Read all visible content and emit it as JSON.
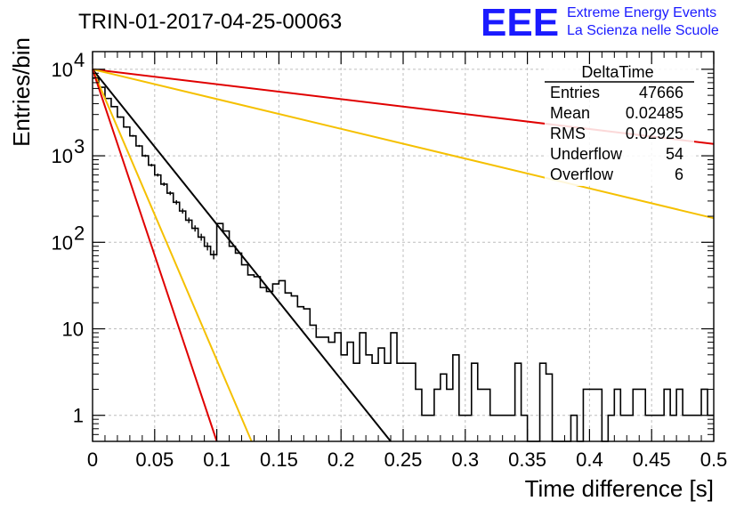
{
  "title": "TRIN-01-2017-04-25-00063",
  "logo": {
    "mark": "EEE",
    "line1": "Extreme Energy Events",
    "line2": "La Scienza nelle Scuole",
    "color": "#1a1aff"
  },
  "stats_box": {
    "name": "DeltaTime",
    "rows": [
      {
        "label": "Entries",
        "value": "47666"
      },
      {
        "label": "Mean",
        "value": "0.02485"
      },
      {
        "label": "RMS",
        "value": "0.02925"
      },
      {
        "label": "Underflow",
        "value": "54"
      },
      {
        "label": "Overflow",
        "value": "6"
      }
    ]
  },
  "chart_data": {
    "type": "line",
    "xlabel": "Time difference [s]",
    "ylabel": "Entries/bin",
    "xlim": [
      0,
      0.5
    ],
    "ylim": [
      0.5,
      16000
    ],
    "yscale": "log",
    "grid": true,
    "x_ticks": [
      "0",
      "0.05",
      "0.1",
      "0.15",
      "0.2",
      "0.25",
      "0.3",
      "0.35",
      "0.4",
      "0.45",
      "0.5"
    ],
    "y_ticks": [
      {
        "value": 1,
        "label": "1"
      },
      {
        "value": 10,
        "label": "10"
      },
      {
        "value": 100,
        "label": "10",
        "exp": "2"
      },
      {
        "value": 1000,
        "label": "10",
        "exp": "3"
      },
      {
        "value": 10000,
        "label": "10",
        "exp": "4"
      }
    ],
    "histogram": {
      "bin_width": 0.005,
      "counts": [
        7900,
        6200,
        4600,
        3700,
        2800,
        2150,
        1700,
        1300,
        1000,
        780,
        600,
        470,
        370,
        290,
        230,
        180,
        145,
        115,
        90,
        72,
        165,
        135,
        90,
        75,
        55,
        42,
        40,
        30,
        27,
        33,
        36,
        26,
        24,
        18,
        17,
        11,
        8,
        8,
        7,
        9,
        5,
        7,
        4,
        9,
        5,
        4,
        6,
        4,
        9,
        4,
        4,
        4,
        2,
        1,
        1,
        2,
        3,
        2,
        5,
        1,
        1,
        4,
        2,
        2,
        1,
        1,
        1,
        1,
        4,
        1,
        0.45,
        0.45,
        4,
        3,
        0.45,
        0.45,
        0.45,
        1,
        0.45,
        2,
        2,
        2,
        0.45,
        1,
        2,
        1,
        1,
        2,
        2,
        1,
        1,
        1,
        2,
        1,
        2,
        1,
        1,
        1,
        2,
        1
      ]
    },
    "series": [
      {
        "color": "#e00000",
        "x": [
          0,
          0.5
        ],
        "y": [
          10000,
          1370
        ]
      },
      {
        "color": "#f5c000",
        "x": [
          0,
          0.5
        ],
        "y": [
          10000,
          190
        ]
      },
      {
        "color": "#000000",
        "x": [
          0,
          0.24
        ],
        "y": [
          10000,
          0.5
        ]
      },
      {
        "color": "#f5c000",
        "x": [
          0,
          0.128
        ],
        "y": [
          10000,
          0.5
        ]
      },
      {
        "color": "#e00000",
        "x": [
          0,
          0.1
        ],
        "y": [
          10000,
          0.5
        ]
      }
    ]
  }
}
